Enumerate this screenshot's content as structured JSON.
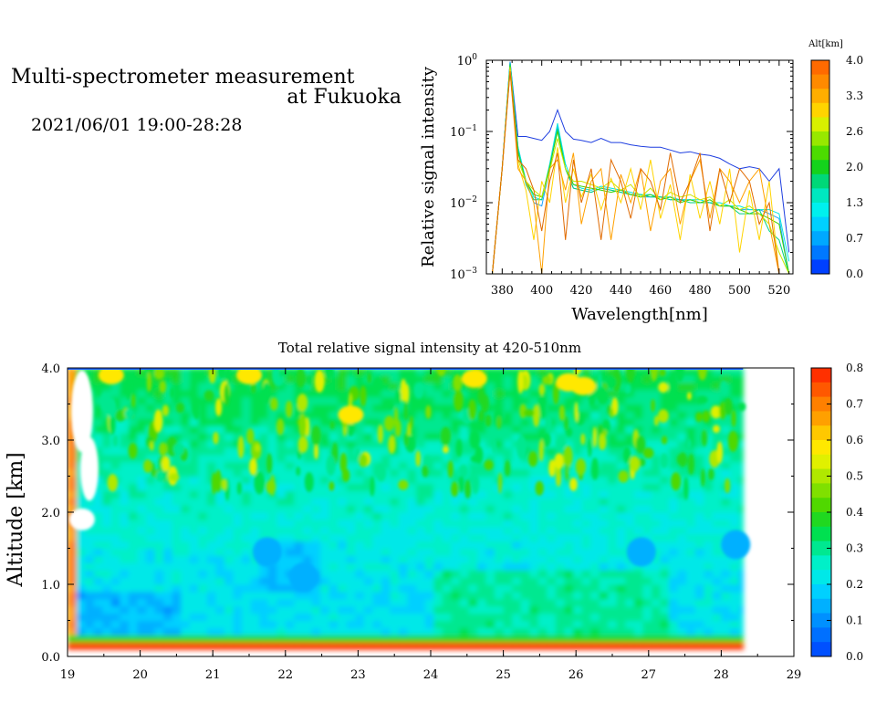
{
  "header": {
    "title_line1": "Multi-spectrometer measurement",
    "title_line2": "at Fukuoka",
    "datetime": "2021/06/01 19:00-28:28"
  },
  "chart_data": [
    {
      "type": "line",
      "xlabel": "Wavelength[nm]",
      "ylabel": "Relative signal intensity",
      "y_scale": "log",
      "xlim": [
        372,
        527
      ],
      "ylim": [
        0.001,
        1
      ],
      "x_ticks": [
        380,
        400,
        420,
        440,
        460,
        480,
        500,
        520
      ],
      "y_ticks": [
        {
          "value": 1,
          "base": "10",
          "exp": "0"
        },
        {
          "value": 0.1,
          "base": "10",
          "exp": "−1"
        },
        {
          "value": 0.01,
          "base": "10",
          "exp": "−2"
        },
        {
          "value": 0.001,
          "base": "10",
          "exp": "−3"
        }
      ],
      "colorbar": {
        "label": "Alt[km]",
        "ticks": [
          "4.0",
          "3.3",
          "2.6",
          "2.0",
          "1.3",
          "0.7",
          "0.0"
        ],
        "colors": [
          "#ff6a00",
          "#ff8a00",
          "#ffae00",
          "#ffd400",
          "#d8f000",
          "#98e800",
          "#4cdc00",
          "#14d21c",
          "#00d878",
          "#00e8c0",
          "#00f0ee",
          "#00d0ff",
          "#00a8ff",
          "#0078ff",
          "#0040ff"
        ]
      },
      "x": [
        375,
        380,
        384,
        388,
        392,
        396,
        400,
        404,
        408,
        412,
        416,
        420,
        425,
        430,
        435,
        440,
        445,
        450,
        455,
        460,
        465,
        470,
        475,
        480,
        485,
        490,
        495,
        500,
        505,
        510,
        515,
        520,
        525
      ],
      "series": [
        {
          "altitude_km": 0.1,
          "color": "#1f3fe0",
          "values": [
            0.001,
            0.03,
            0.95,
            0.085,
            0.085,
            0.08,
            0.075,
            0.1,
            0.2,
            0.1,
            0.078,
            0.075,
            0.07,
            0.08,
            0.07,
            0.07,
            0.065,
            0.062,
            0.06,
            0.06,
            0.055,
            0.05,
            0.052,
            0.048,
            0.046,
            0.042,
            0.035,
            0.03,
            0.032,
            0.03,
            0.02,
            0.03,
            0.002
          ]
        },
        {
          "altitude_km": 0.7,
          "color": "#1aa2ff",
          "values": [
            0.001,
            0.03,
            0.95,
            0.06,
            0.02,
            0.01,
            0.009,
            0.03,
            0.12,
            0.03,
            0.016,
            0.015,
            0.014,
            0.016,
            0.015,
            0.014,
            0.013,
            0.012,
            0.012,
            0.012,
            0.011,
            0.011,
            0.011,
            0.01,
            0.01,
            0.009,
            0.009,
            0.008,
            0.008,
            0.008,
            0.007,
            0.006,
            0.001
          ]
        },
        {
          "altitude_km": 1.2,
          "color": "#00e6e0",
          "values": [
            0.001,
            0.03,
            0.9,
            0.06,
            0.02,
            0.012,
            0.011,
            0.035,
            0.13,
            0.035,
            0.018,
            0.016,
            0.015,
            0.017,
            0.016,
            0.015,
            0.014,
            0.013,
            0.013,
            0.012,
            0.012,
            0.011,
            0.011,
            0.011,
            0.01,
            0.01,
            0.009,
            0.009,
            0.008,
            0.008,
            0.008,
            0.007,
            0.0015
          ]
        },
        {
          "altitude_km": 1.6,
          "color": "#00d080",
          "values": [
            0.001,
            0.03,
            0.9,
            0.055,
            0.018,
            0.011,
            0.011,
            0.03,
            0.11,
            0.03,
            0.016,
            0.015,
            0.014,
            0.016,
            0.015,
            0.014,
            0.013,
            0.013,
            0.012,
            0.012,
            0.011,
            0.011,
            0.01,
            0.01,
            0.01,
            0.009,
            0.009,
            0.007,
            0.007,
            0.008,
            0.004,
            0.003,
            0.001
          ]
        },
        {
          "altitude_km": 2.0,
          "color": "#3ed200",
          "values": [
            0.001,
            0.03,
            0.85,
            0.05,
            0.02,
            0.013,
            0.012,
            0.032,
            0.1,
            0.03,
            0.018,
            0.017,
            0.016,
            0.015,
            0.014,
            0.015,
            0.013,
            0.012,
            0.013,
            0.011,
            0.012,
            0.01,
            0.011,
            0.01,
            0.011,
            0.009,
            0.009,
            0.008,
            0.007,
            0.007,
            0.006,
            0.005,
            0.001
          ]
        },
        {
          "altitude_km": 2.6,
          "color": "#c8e600",
          "values": [
            0.001,
            0.03,
            0.8,
            0.04,
            0.02,
            0.015,
            0.012,
            0.028,
            0.08,
            0.03,
            0.02,
            0.02,
            0.018,
            0.016,
            0.02,
            0.015,
            0.018,
            0.012,
            0.016,
            0.011,
            0.014,
            0.012,
            0.013,
            0.011,
            0.012,
            0.009,
            0.011,
            0.008,
            0.009,
            0.007,
            0.005,
            0.002,
            0.001
          ]
        },
        {
          "altitude_km": 3.0,
          "color": "#ffd400",
          "values": [
            0.001,
            0.03,
            0.75,
            0.035,
            0.015,
            0.003,
            0.02,
            0.01,
            0.06,
            0.01,
            0.03,
            0.012,
            0.025,
            0.008,
            0.022,
            0.01,
            0.03,
            0.008,
            0.04,
            0.006,
            0.018,
            0.003,
            0.025,
            0.006,
            0.02,
            0.005,
            0.03,
            0.002,
            0.015,
            0.003,
            0.02,
            0.001,
            0.001
          ]
        },
        {
          "altitude_km": 3.5,
          "color": "#ffa000",
          "values": [
            0.001,
            0.03,
            0.7,
            0.03,
            0.02,
            0.01,
            0.001,
            0.03,
            0.04,
            0.015,
            0.05,
            0.005,
            0.02,
            0.03,
            0.003,
            0.025,
            0.01,
            0.03,
            0.004,
            0.02,
            0.03,
            0.005,
            0.02,
            0.04,
            0.006,
            0.03,
            0.02,
            0.01,
            0.02,
            0.03,
            0.005,
            0.001,
            0.001
          ]
        },
        {
          "altitude_km": 4.0,
          "color": "#e06a00",
          "values": [
            0.001,
            0.03,
            0.7,
            0.04,
            0.03,
            0.015,
            0.004,
            0.02,
            0.05,
            0.003,
            0.04,
            0.01,
            0.03,
            0.003,
            0.04,
            0.02,
            0.006,
            0.03,
            0.02,
            0.008,
            0.05,
            0.01,
            0.02,
            0.05,
            0.004,
            0.03,
            0.01,
            0.03,
            0.02,
            0.005,
            0.01,
            0.001,
            0.001
          ]
        }
      ]
    },
    {
      "type": "heatmap",
      "title": "Total relative signal intensity at 420-510nm",
      "ylabel": "Altitude [km]",
      "xlim": [
        19,
        29
      ],
      "ylim": [
        0,
        4
      ],
      "x_ticks": [
        "19",
        "20",
        "21",
        "22",
        "23",
        "24",
        "25",
        "26",
        "27",
        "28",
        "29"
      ],
      "y_ticks": [
        "0.0",
        "1.0",
        "2.0",
        "3.0",
        "4.0"
      ],
      "data_time_range": [
        19.0,
        28.3
      ],
      "colorbar": {
        "range": [
          0,
          0.8
        ],
        "ticks": [
          "0.0",
          "0.1",
          "0.2",
          "0.3",
          "0.4",
          "0.5",
          "0.6",
          "0.7",
          "0.8"
        ],
        "colors": [
          "#0050ff",
          "#0070ff",
          "#0090ff",
          "#00b0ff",
          "#00d0ff",
          "#00e8e8",
          "#00f0c8",
          "#00e890",
          "#00e050",
          "#20d820",
          "#50d800",
          "#80e000",
          "#b0e800",
          "#e0f000",
          "#ffe800",
          "#ffc800",
          "#ffa000",
          "#ff8000",
          "#ff5800",
          "#ff3000"
        ]
      },
      "description_levels": [
        {
          "altitude_range": [
            0.15,
            0.22
          ],
          "time_range": [
            19.3,
            28.3
          ],
          "value": 0.75
        },
        {
          "altitude_range": [
            0.25,
            0.7
          ],
          "time_range": [
            19.2,
            28.3
          ],
          "value": 0.22
        },
        {
          "altitude_range": [
            0.4,
            0.9
          ],
          "time_range": [
            19.2,
            20.6
          ],
          "value": 0.15
        },
        {
          "altitude_range": [
            1.2,
            1.6
          ],
          "time_range": [
            21.6,
            22.4
          ],
          "value": 0.15
        },
        {
          "altitude_range": [
            0.5,
            1.2
          ],
          "time_range": [
            24.1,
            27.4
          ],
          "value": 0.3
        },
        {
          "altitude_range": [
            1.0,
            2.5
          ],
          "time_range": [
            19.5,
            28.3
          ],
          "value": 0.22
        },
        {
          "altitude_range": [
            2.5,
            4.0
          ],
          "time_range": [
            19.5,
            28.3
          ],
          "value": 0.33
        }
      ]
    }
  ]
}
